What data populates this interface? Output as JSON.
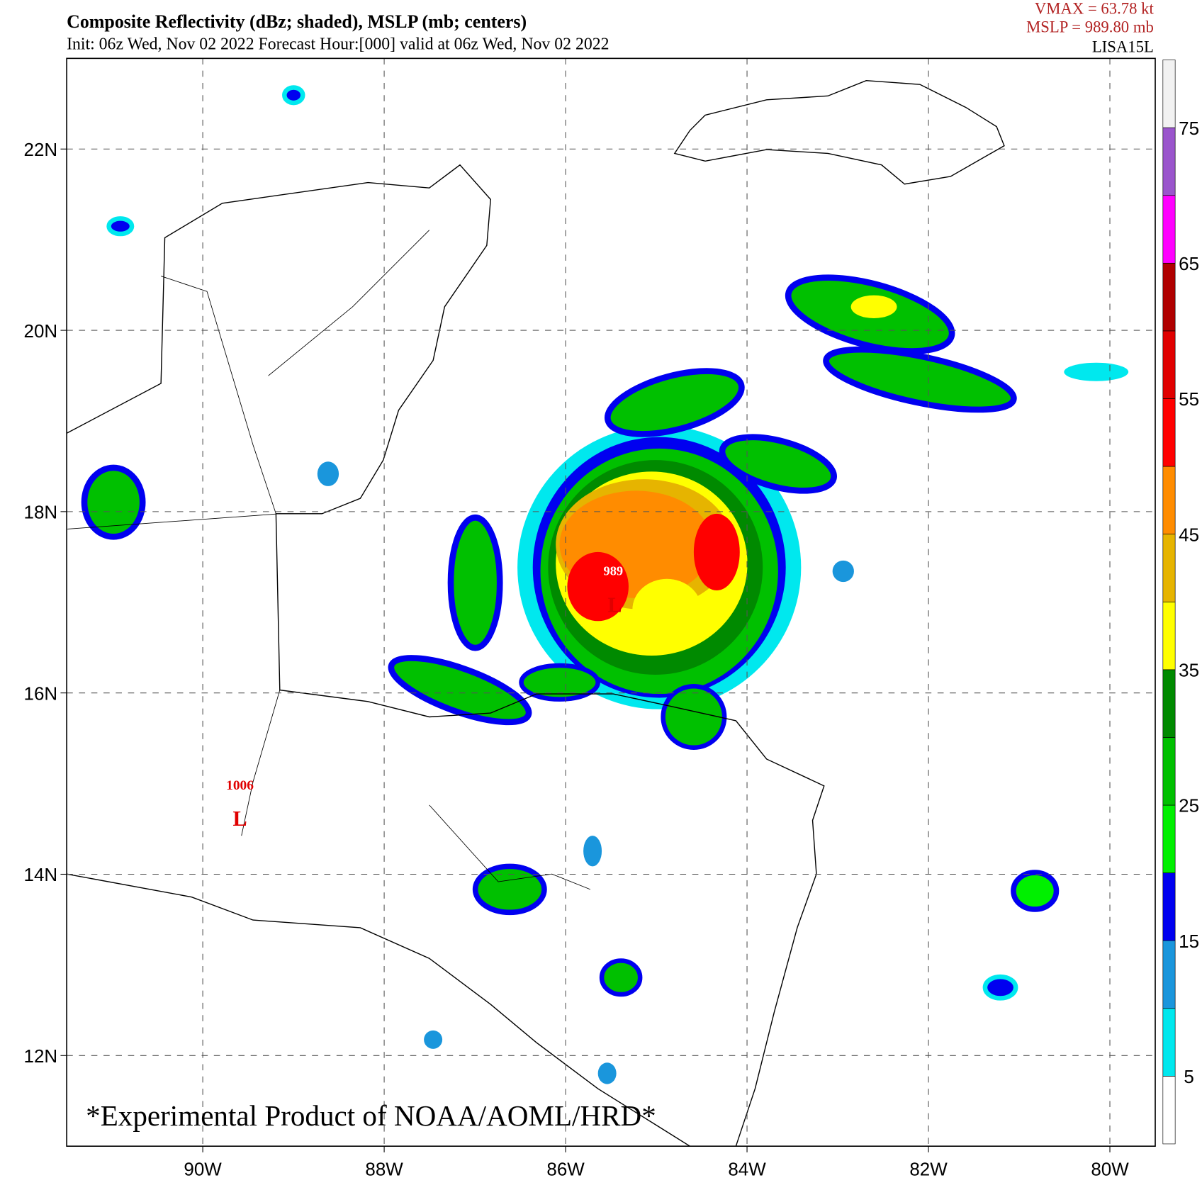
{
  "header": {
    "title": "Composite Reflectivity (dBz; shaded), MSLP (mb; centers)",
    "subtitle": "Init: 06z Wed, Nov 02 2022  Forecast Hour:[000]  valid at 06z Wed, Nov 02 2022",
    "vmax": "VMAX =   63.78 kt",
    "mslp": "MSLP =  989.80 mb",
    "storm": "LISA15L"
  },
  "map": {
    "xlim": [
      -91.5,
      -79.5
    ],
    "ylim": [
      11,
      23
    ],
    "xticks": [
      {
        "value": -90,
        "label": "90W"
      },
      {
        "value": -88,
        "label": "88W"
      },
      {
        "value": -86,
        "label": "86W"
      },
      {
        "value": -84,
        "label": "84W"
      },
      {
        "value": -82,
        "label": "82W"
      },
      {
        "value": -80,
        "label": "80W"
      }
    ],
    "yticks": [
      {
        "value": 12,
        "label": "12N"
      },
      {
        "value": 14,
        "label": "14N"
      },
      {
        "value": 16,
        "label": "16N"
      },
      {
        "value": 18,
        "label": "18N"
      },
      {
        "value": 20,
        "label": "20N"
      },
      {
        "value": 22,
        "label": "22N"
      }
    ],
    "grid": true,
    "centers": [
      {
        "pressure": "989",
        "symbol": "L"
      },
      {
        "pressure": "1006",
        "symbol": "L"
      }
    ],
    "watermark": "*Experimental Product of NOAA/AOML/HRD*"
  },
  "colorbar": {
    "lim": [
      0,
      80
    ],
    "levels": [
      0,
      5,
      10,
      15,
      20,
      25,
      30,
      35,
      40,
      45,
      50,
      55,
      60,
      65,
      70,
      75,
      80
    ],
    "colors": [
      "#ffffff",
      "#00e8ee",
      "#1a96dc",
      "#0000f0",
      "#00f000",
      "#00c000",
      "#008a00",
      "#ffff00",
      "#e6b400",
      "#ff8c00",
      "#ff0000",
      "#e00000",
      "#b00000",
      "#ff00ff",
      "#9a55cc",
      "#f2f2f2"
    ],
    "ticks": [
      5,
      15,
      25,
      35,
      45,
      55,
      65,
      75
    ]
  }
}
